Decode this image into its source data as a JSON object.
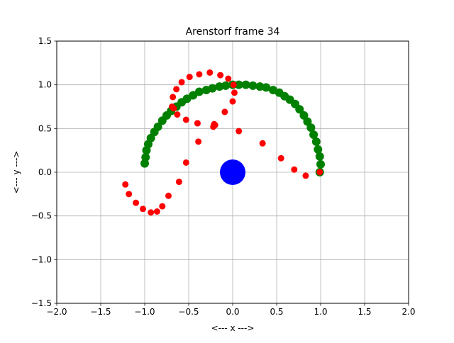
{
  "chart_data": {
    "type": "scatter",
    "title": "Arenstorf frame 34",
    "xlabel": "<---  x  --->",
    "ylabel": "<---  y  --->",
    "xlim": [
      -2.0,
      2.0
    ],
    "ylim": [
      -1.5,
      1.5
    ],
    "xticks": [
      -2.0,
      -1.5,
      -1.0,
      -0.5,
      0.0,
      0.5,
      1.0,
      1.5,
      2.0
    ],
    "yticks": [
      -1.5,
      -1.0,
      -0.5,
      0.0,
      0.5,
      1.0,
      1.5
    ],
    "xtick_labels": [
      "−2.0",
      "−1.5",
      "−1.0",
      "−0.5",
      "0.0",
      "0.5",
      "1.0",
      "1.5",
      "2.0"
    ],
    "ytick_labels": [
      "−1.5",
      "−1.0",
      "−0.5",
      "0.0",
      "0.5",
      "1.0",
      "1.5"
    ],
    "grid": true,
    "series": [
      {
        "color": "#008000",
        "marker_size": "medium",
        "x": [
          0.99,
          1.0,
          0.99,
          0.97,
          0.95,
          0.92,
          0.89,
          0.85,
          0.81,
          0.76,
          0.71,
          0.65,
          0.59,
          0.53,
          0.46,
          0.38,
          0.31,
          0.23,
          0.15,
          0.07,
          0.0,
          -0.08,
          -0.15,
          -0.23,
          -0.3,
          -0.38,
          -0.45,
          -0.52,
          -0.58,
          -0.64,
          -0.7,
          -0.75,
          -0.8,
          -0.85,
          -0.89,
          -0.93,
          -0.96,
          -0.98,
          -0.99,
          -1.0
        ],
        "y": [
          0.0,
          0.09,
          0.18,
          0.26,
          0.35,
          0.43,
          0.51,
          0.58,
          0.65,
          0.72,
          0.78,
          0.83,
          0.87,
          0.91,
          0.94,
          0.97,
          0.98,
          0.99,
          1.0,
          1.0,
          1.0,
          0.99,
          0.98,
          0.96,
          0.94,
          0.92,
          0.88,
          0.84,
          0.8,
          0.75,
          0.7,
          0.65,
          0.59,
          0.52,
          0.46,
          0.39,
          0.32,
          0.25,
          0.17,
          0.1
        ]
      },
      {
        "color": "#ff0000",
        "marker_size": "small",
        "x": [
          0.99,
          0.83,
          0.7,
          0.55,
          0.34,
          0.07,
          -0.2,
          -0.39,
          -0.53,
          -0.61,
          -0.73,
          -0.8,
          -0.86,
          -0.93,
          -1.02,
          -1.1,
          -1.18,
          -1.22,
          -0.63,
          -0.53,
          -0.4,
          -0.22,
          -0.09,
          0.0,
          0.02,
          0.01,
          -0.05,
          -0.14,
          -0.26,
          -0.38,
          -0.49,
          -0.58,
          -0.64,
          -0.68,
          -0.69,
          -0.67,
          -0.4,
          -0.21
        ],
        "y": [
          0.0,
          -0.04,
          0.03,
          0.16,
          0.33,
          0.47,
          0.54,
          0.35,
          0.11,
          -0.11,
          -0.27,
          -0.39,
          -0.45,
          -0.46,
          -0.42,
          -0.35,
          -0.25,
          -0.14,
          0.66,
          0.6,
          0.56,
          0.52,
          0.69,
          0.81,
          0.91,
          1.0,
          1.07,
          1.11,
          1.14,
          1.12,
          1.09,
          1.03,
          0.95,
          0.86,
          0.75,
          0.73,
          0.56,
          0.55
        ]
      },
      {
        "color": "#0000ff",
        "marker_size": "large",
        "x": [
          0.0
        ],
        "y": [
          0.0
        ]
      }
    ]
  }
}
